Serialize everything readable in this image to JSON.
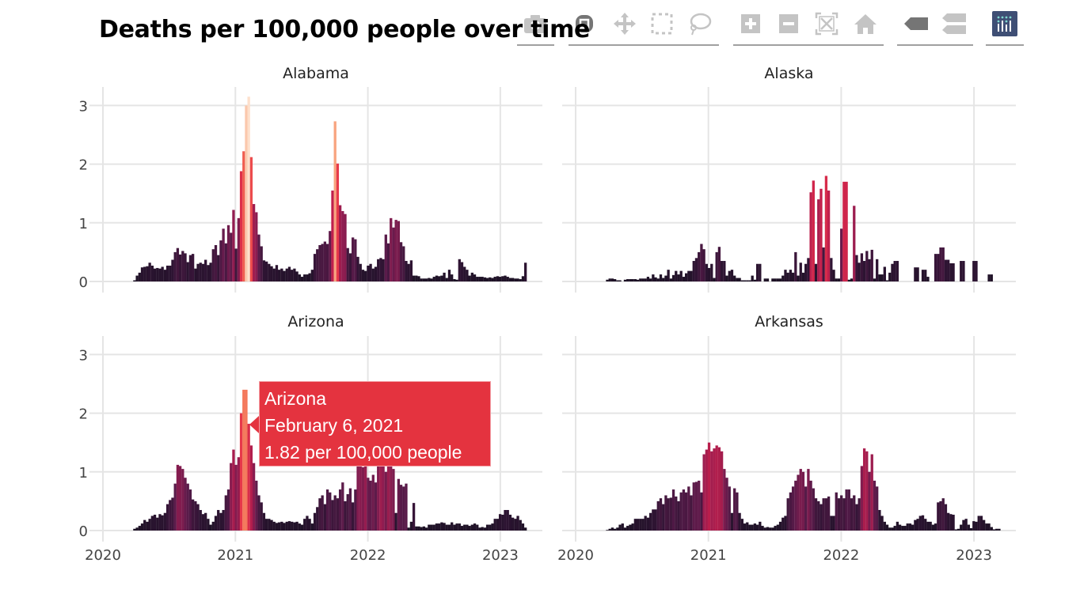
{
  "title": "Deaths per 100,000 people over time",
  "modebar": {
    "buttons": [
      {
        "icon": "camera-icon",
        "name": "download-plot-button",
        "state": "inactive"
      },
      {
        "icon": "zoom-icon",
        "name": "zoom-button",
        "state": "active"
      },
      {
        "icon": "pan-icon",
        "name": "pan-button",
        "state": "inactive"
      },
      {
        "icon": "box-select-icon",
        "name": "box-select-button",
        "state": "inactive"
      },
      {
        "icon": "lasso-icon",
        "name": "lasso-select-button",
        "state": "inactive"
      },
      {
        "icon": "zoom-in-icon",
        "name": "zoom-in-button",
        "state": "inactive"
      },
      {
        "icon": "zoom-out-icon",
        "name": "zoom-out-button",
        "state": "inactive"
      },
      {
        "icon": "autoscale-icon",
        "name": "autoscale-button",
        "state": "inactive"
      },
      {
        "icon": "home-icon",
        "name": "reset-axes-button",
        "state": "inactive"
      },
      {
        "icon": "spike-lines-icon",
        "name": "hover-closest-button",
        "state": "active"
      },
      {
        "icon": "compare-icon",
        "name": "hover-compare-button",
        "state": "inactive"
      },
      {
        "icon": "plotly-logo-icon",
        "name": "plotly-logo-button",
        "state": "logo"
      }
    ],
    "colors": {
      "active": "#757575",
      "inactive": "#c4c4c4",
      "logo": "#3f4f75"
    }
  },
  "tooltip": {
    "state": "Arizona",
    "date": "February 6, 2021",
    "value_text": "1.82 per 100,000 people",
    "color": "#e4333f"
  },
  "chart_data": {
    "type": "bar",
    "facet_by": "state",
    "xlabel": "",
    "ylabel": "",
    "ylim": [
      0,
      3.3
    ],
    "yticks": [
      "0",
      "1",
      "2",
      "3"
    ],
    "xticks": [
      "2020",
      "2021",
      "2022",
      "2023"
    ],
    "grid": true,
    "colorscale": [
      [
        0,
        "#1b1224"
      ],
      [
        0.4,
        "#301434"
      ],
      [
        0.8,
        "#5a1b4a"
      ],
      [
        1.2,
        "#8f1c50"
      ],
      [
        1.6,
        "#c71f4b"
      ],
      [
        2.0,
        "#e7384a"
      ],
      [
        2.3,
        "#f36a52"
      ],
      [
        2.6,
        "#f7946c"
      ],
      [
        2.9,
        "#fab898"
      ],
      [
        3.15,
        "#fde0cc"
      ]
    ],
    "x": [
      "2020-03-28",
      "2020-04-04",
      "2020-04-11",
      "2020-04-18",
      "2020-04-25",
      "2020-05-02",
      "2020-05-09",
      "2020-05-16",
      "2020-05-23",
      "2020-05-30",
      "2020-06-06",
      "2020-06-13",
      "2020-06-20",
      "2020-06-27",
      "2020-07-04",
      "2020-07-11",
      "2020-07-18",
      "2020-07-25",
      "2020-08-01",
      "2020-08-08",
      "2020-08-15",
      "2020-08-22",
      "2020-08-29",
      "2020-09-05",
      "2020-09-12",
      "2020-09-19",
      "2020-09-26",
      "2020-10-03",
      "2020-10-10",
      "2020-10-17",
      "2020-10-24",
      "2020-10-31",
      "2020-11-07",
      "2020-11-14",
      "2020-11-21",
      "2020-11-28",
      "2020-12-05",
      "2020-12-12",
      "2020-12-19",
      "2020-12-26",
      "2021-01-02",
      "2021-01-09",
      "2021-01-16",
      "2021-01-23",
      "2021-01-30",
      "2021-02-06",
      "2021-02-13",
      "2021-02-20",
      "2021-02-27",
      "2021-03-06",
      "2021-03-13",
      "2021-03-20",
      "2021-03-27",
      "2021-04-03",
      "2021-04-10",
      "2021-04-17",
      "2021-04-24",
      "2021-05-01",
      "2021-05-08",
      "2021-05-15",
      "2021-05-22",
      "2021-05-29",
      "2021-06-05",
      "2021-06-12",
      "2021-06-19",
      "2021-06-26",
      "2021-07-03",
      "2021-07-10",
      "2021-07-17",
      "2021-07-24",
      "2021-07-31",
      "2021-08-07",
      "2021-08-14",
      "2021-08-21",
      "2021-08-28",
      "2021-09-04",
      "2021-09-11",
      "2021-09-18",
      "2021-09-25",
      "2021-10-02",
      "2021-10-09",
      "2021-10-16",
      "2021-10-23",
      "2021-10-30",
      "2021-11-06",
      "2021-11-13",
      "2021-11-20",
      "2021-11-27",
      "2021-12-04",
      "2021-12-11",
      "2021-12-18",
      "2021-12-25",
      "2022-01-01",
      "2022-01-08",
      "2022-01-15",
      "2022-01-22",
      "2022-01-29",
      "2022-02-05",
      "2022-02-12",
      "2022-02-19",
      "2022-02-26",
      "2022-03-05",
      "2022-03-12",
      "2022-03-19",
      "2022-03-26",
      "2022-04-02",
      "2022-04-09",
      "2022-04-16",
      "2022-04-23",
      "2022-04-30",
      "2022-05-07",
      "2022-05-14",
      "2022-05-21",
      "2022-05-28",
      "2022-06-04",
      "2022-06-11",
      "2022-06-18",
      "2022-06-25",
      "2022-07-02",
      "2022-07-09",
      "2022-07-16",
      "2022-07-23",
      "2022-07-30",
      "2022-08-06",
      "2022-08-13",
      "2022-08-20",
      "2022-08-27",
      "2022-09-03",
      "2022-09-10",
      "2022-09-17",
      "2022-09-24",
      "2022-10-01",
      "2022-10-08",
      "2022-10-15",
      "2022-10-22",
      "2022-10-29",
      "2022-11-05",
      "2022-11-12",
      "2022-11-19",
      "2022-11-26",
      "2022-12-03",
      "2022-12-10",
      "2022-12-17",
      "2022-12-24",
      "2022-12-31",
      "2023-01-07",
      "2023-01-14",
      "2023-01-21",
      "2023-01-28",
      "2023-02-04",
      "2023-02-11",
      "2023-02-18",
      "2023-02-25",
      "2023-03-04",
      "2023-03-11"
    ],
    "series": [
      {
        "name": "Alabama",
        "values": [
          0.02,
          0.1,
          0.15,
          0.24,
          0.25,
          0.26,
          0.32,
          0.27,
          0.22,
          0.23,
          0.22,
          0.25,
          0.2,
          0.27,
          0.27,
          0.37,
          0.5,
          0.57,
          0.46,
          0.52,
          0.48,
          0.33,
          0.45,
          0.47,
          0.22,
          0.3,
          0.32,
          0.3,
          0.37,
          0.28,
          0.32,
          0.55,
          0.62,
          0.45,
          0.7,
          0.9,
          0.65,
          0.96,
          0.83,
          1.22,
          0.56,
          1.08,
          1.88,
          2.22,
          3.0,
          3.15,
          2.12,
          1.32,
          1.18,
          0.8,
          0.6,
          0.36,
          0.34,
          0.3,
          0.26,
          0.22,
          0.28,
          0.2,
          0.22,
          0.18,
          0.22,
          0.25,
          0.2,
          0.22,
          0.17,
          0.12,
          0.08,
          0.12,
          0.12,
          0.14,
          0.2,
          0.47,
          0.55,
          0.62,
          0.64,
          0.68,
          0.64,
          0.86,
          1.55,
          2.73,
          2.01,
          1.3,
          1.2,
          1.15,
          0.57,
          0.48,
          0.75,
          0.72,
          0.42,
          0.3,
          0.2,
          0.18,
          0.27,
          0.3,
          0.22,
          0.25,
          0.38,
          0.4,
          0.38,
          0.8,
          0.65,
          1.08,
          0.92,
          1.05,
          1.03,
          0.67,
          0.6,
          0.35,
          0.3,
          0.36,
          0.1,
          0.1,
          0.09,
          0.05,
          0.05,
          0.05,
          0.06,
          0.05,
          0.08,
          0.1,
          0.09,
          0.1,
          0.15,
          0.06,
          0.2,
          0.12,
          0.04,
          0.03,
          0.38,
          0.33,
          0.25,
          0.2,
          0.1,
          0.15,
          0.12,
          0.08,
          0.08,
          0.08,
          0.07,
          0.06,
          0.07,
          0.06,
          0.08,
          0.09,
          0.08,
          0.09,
          0.1,
          0.08,
          0.06,
          0.06,
          0.05,
          0.05,
          0.04,
          0.09,
          0.32
        ]
      },
      {
        "name": "Alaska",
        "values": [
          0.03,
          0.05,
          0.05,
          0.04,
          0.02,
          0.02,
          null,
          0.03,
          0.04,
          0.04,
          0.04,
          0.04,
          0.03,
          0.05,
          0.05,
          0.05,
          0.08,
          0.05,
          0.12,
          0.07,
          0.05,
          0.12,
          0.06,
          0.1,
          0.2,
          0.05,
          0.11,
          0.18,
          0.12,
          0.18,
          0.08,
          0.14,
          0.18,
          0.18,
          0.35,
          0.4,
          0.5,
          0.64,
          0.55,
          0.3,
          0.23,
          0.3,
          0.06,
          0.5,
          0.59,
          0.35,
          0.35,
          0.1,
          0.18,
          0.2,
          0.1,
          0.06,
          0.06,
          0.02,
          0.02,
          0.02,
          0.02,
          0.1,
          0.03,
          0.3,
          0.3,
          null,
          0.05,
          0.05,
          null,
          0.05,
          0.05,
          0.05,
          0.05,
          0.1,
          0.2,
          0.15,
          0.2,
          0.15,
          0.5,
          0.1,
          0.32,
          0.15,
          0.3,
          0.4,
          1.52,
          1.72,
          0.3,
          1.4,
          1.58,
          0.58,
          1.8,
          1.55,
          0.4,
          0.2,
          0.05,
          0.05,
          0.9,
          1.7,
          1.7,
          0.03,
          0.05,
          1.29,
          0.45,
          0.32,
          0.48,
          0.35,
          0.52,
          0.38,
          0.54,
          0.05,
          0.38,
          0.12,
          0.12,
          0.25,
          0.02,
          0.15,
          0.3,
          0.35,
          0.35,
          null,
          null,
          null,
          null,
          null,
          null,
          0.24,
          0.24,
          null,
          0.2,
          0.2,
          0.08,
          null,
          null,
          0.47,
          0.47,
          0.58,
          0.58,
          0.37,
          0.37,
          0.31,
          0.31,
          null,
          null,
          0.35,
          0.35,
          null,
          null,
          null,
          0.35,
          0.35,
          null,
          null,
          null,
          null,
          0.12,
          0.12,
          null,
          null,
          null
        ]
      },
      {
        "name": "Arizona",
        "values": [
          0.03,
          0.05,
          0.08,
          0.12,
          0.18,
          0.15,
          0.2,
          0.25,
          0.27,
          0.22,
          0.28,
          0.26,
          0.3,
          0.45,
          0.52,
          0.56,
          0.8,
          1.12,
          1.1,
          1.05,
          0.9,
          0.8,
          0.7,
          0.53,
          0.5,
          0.45,
          0.35,
          0.28,
          0.3,
          0.2,
          0.1,
          0.15,
          0.25,
          0.35,
          0.3,
          0.35,
          0.6,
          0.7,
          1.15,
          1.38,
          1.12,
          1.25,
          2.0,
          2.4,
          2.4,
          1.82,
          1.45,
          1.15,
          0.85,
          0.6,
          0.48,
          0.3,
          0.2,
          0.2,
          0.18,
          0.15,
          0.13,
          0.14,
          0.15,
          0.13,
          0.15,
          0.16,
          0.15,
          0.14,
          0.15,
          0.12,
          0.1,
          0.2,
          0.25,
          0.2,
          0.12,
          0.3,
          0.4,
          0.55,
          0.6,
          0.45,
          0.7,
          0.65,
          0.52,
          0.6,
          0.55,
          0.7,
          0.82,
          0.5,
          0.62,
          0.72,
          0.48,
          0.7,
          1.1,
          1.15,
          1.08,
          1.25,
          0.9,
          0.85,
          0.95,
          0.82,
          1.1,
          1.3,
          1.2,
          1.0,
          1.28,
          1.15,
          1.05,
          0.3,
          0.88,
          0.78,
          0.75,
          0.8,
          0.05,
          0.15,
          0.47,
          0.07,
          0.07,
          0.06,
          0.07,
          0.05,
          0.1,
          0.1,
          0.1,
          0.12,
          0.12,
          0.14,
          0.13,
          0.1,
          0.1,
          0.14,
          0.1,
          0.12,
          0.12,
          0.08,
          0.1,
          0.1,
          0.08,
          0.1,
          0.12,
          0.1,
          0.05,
          0.06,
          0.05,
          0.1,
          0.1,
          0.12,
          0.2,
          0.2,
          0.28,
          0.27,
          0.35,
          0.35,
          0.27,
          0.22,
          0.2,
          0.25,
          0.18,
          0.12,
          0.05
        ]
      },
      {
        "name": "Arkansas",
        "values": [
          0.01,
          0.03,
          0.05,
          0.03,
          0.05,
          0.1,
          0.12,
          0.05,
          0.08,
          0.1,
          0.12,
          0.2,
          0.2,
          0.2,
          0.2,
          0.25,
          0.22,
          0.3,
          0.36,
          0.36,
          0.5,
          0.55,
          0.45,
          0.6,
          0.55,
          0.56,
          0.7,
          0.58,
          0.5,
          0.65,
          0.7,
          0.65,
          0.75,
          0.6,
          0.82,
          0.83,
          0.85,
          0.65,
          1.3,
          1.38,
          1.5,
          1.35,
          1.4,
          1.45,
          1.42,
          1.35,
          1.05,
          0.9,
          0.75,
          0.3,
          0.72,
          0.65,
          0.3,
          0.2,
          0.12,
          0.14,
          0.1,
          0.1,
          0.12,
          0.1,
          0.15,
          0.08,
          0.05,
          0.06,
          0.05,
          0.05,
          0.08,
          0.1,
          0.15,
          0.22,
          0.25,
          0.55,
          0.65,
          0.75,
          0.85,
          0.95,
          1.05,
          1.0,
          0.75,
          1.05,
          0.85,
          0.72,
          0.55,
          0.5,
          0.45,
          0.55,
          0.55,
          0.58,
          0.25,
          0.25,
          0.65,
          0.55,
          0.6,
          0.55,
          0.7,
          0.7,
          0.55,
          0.6,
          0.45,
          0.55,
          1.1,
          1.4,
          1.35,
          1.0,
          1.3,
          0.85,
          0.75,
          0.35,
          0.25,
          0.15,
          0.1,
          0.05,
          0.05,
          0.08,
          0.15,
          0.1,
          0.08,
          0.08,
          0.12,
          0.12,
          0.1,
          0.18,
          0.2,
          0.25,
          0.26,
          0.2,
          0.15,
          0.15,
          0.1,
          0.12,
          0.48,
          0.5,
          0.55,
          0.45,
          0.3,
          0.28,
          0.27,
          0.02,
          0.03,
          0.1,
          0.18,
          0.2,
          0.1,
          0.04,
          0.16,
          0.15,
          0.25,
          0.25,
          0.18,
          0.12,
          0.12,
          0.06,
          0.02,
          0.03,
          0.03
        ]
      }
    ]
  }
}
